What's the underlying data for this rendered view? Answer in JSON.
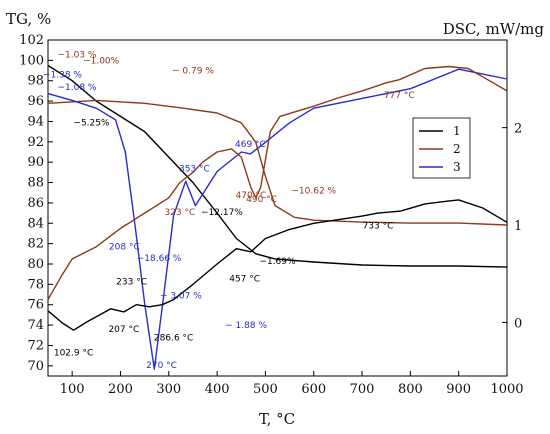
{
  "chart_data": {
    "type": "line",
    "title": "",
    "xlabel": "T, °C",
    "ylabel_left": "TG, %",
    "ylabel_right": "DSC, mW/mg",
    "xlim": [
      50,
      1000
    ],
    "ylim_left": [
      69,
      102
    ],
    "ylim_right": [
      -0.55,
      2.9
    ],
    "x_ticks": [
      100,
      200,
      300,
      400,
      500,
      600,
      700,
      800,
      900,
      1000
    ],
    "y_left_ticks": [
      70,
      72,
      74,
      76,
      78,
      80,
      82,
      84,
      86,
      88,
      90,
      92,
      94,
      96,
      98,
      100,
      102
    ],
    "y_right_ticks": [
      0,
      1,
      2
    ],
    "grid": false,
    "legend_position": "right",
    "series": [
      {
        "name": "1",
        "color": "#000000",
        "axis": "left",
        "points": [
          [
            50,
            99.5
          ],
          [
            100,
            98
          ],
          [
            150,
            96
          ],
          [
            200,
            94.5
          ],
          [
            250,
            93
          ],
          [
            300,
            90.5
          ],
          [
            350,
            88
          ],
          [
            400,
            85
          ],
          [
            440,
            82.5
          ],
          [
            480,
            81
          ],
          [
            520,
            80.5
          ],
          [
            600,
            80.2
          ],
          [
            700,
            79.9
          ],
          [
            800,
            79.8
          ],
          [
            900,
            79.8
          ],
          [
            1000,
            79.7
          ]
        ]
      },
      {
        "name": "2",
        "color": "#8B3A1A",
        "axis": "right",
        "points": [
          [
            50,
            2.25
          ],
          [
            150,
            2.28
          ],
          [
            250,
            2.25
          ],
          [
            330,
            2.2
          ],
          [
            400,
            2.15
          ],
          [
            450,
            2.05
          ],
          [
            480,
            1.85
          ],
          [
            500,
            1.5
          ],
          [
            520,
            1.2
          ],
          [
            560,
            1.08
          ],
          [
            600,
            1.05
          ],
          [
            700,
            1.03
          ],
          [
            800,
            1.02
          ],
          [
            900,
            1.02
          ],
          [
            1000,
            1.0
          ]
        ]
      },
      {
        "name": "3",
        "color": "#2A2AD0",
        "axis": "right",
        "points": [
          [
            50,
            2.35
          ],
          [
            100,
            2.28
          ],
          [
            150,
            2.2
          ],
          [
            190,
            2.08
          ],
          [
            210,
            1.75
          ],
          [
            230,
            1.0
          ],
          [
            250,
            0.2
          ],
          [
            270,
            -0.48
          ],
          [
            290,
            0.3
          ],
          [
            310,
            1.1
          ],
          [
            335,
            1.45
          ],
          [
            355,
            1.2
          ],
          [
            400,
            1.55
          ],
          [
            450,
            1.75
          ],
          [
            469,
            1.73
          ],
          [
            500,
            1.85
          ],
          [
            550,
            2.05
          ],
          [
            600,
            2.2
          ],
          [
            700,
            2.3
          ],
          [
            800,
            2.4
          ],
          [
            850,
            2.5
          ],
          [
            900,
            2.6
          ],
          [
            950,
            2.55
          ],
          [
            1000,
            2.5
          ]
        ]
      },
      {
        "name": "",
        "color": "#000000",
        "axis": "left",
        "points": [
          [
            50,
            75.4
          ],
          [
            80,
            74.2
          ],
          [
            102.9,
            73.5
          ],
          [
            130,
            74.3
          ],
          [
            180,
            75.6
          ],
          [
            207,
            75.3
          ],
          [
            233,
            76.0
          ],
          [
            260,
            75.8
          ],
          [
            286.6,
            76.0
          ],
          [
            310,
            76.5
          ],
          [
            350,
            78.0
          ],
          [
            400,
            80.0
          ],
          [
            440,
            81.5
          ],
          [
            470,
            81.2
          ],
          [
            500,
            82.5
          ],
          [
            550,
            83.4
          ],
          [
            600,
            84
          ],
          [
            700,
            84.7
          ],
          [
            733,
            85
          ],
          [
            780,
            85.2
          ],
          [
            830,
            85.9
          ],
          [
            880,
            86.2
          ],
          [
            900,
            86.3
          ],
          [
            950,
            85.5
          ],
          [
            1000,
            84.1
          ]
        ]
      },
      {
        "name": "",
        "color": "#8B3A1A",
        "axis": "left",
        "points": [
          [
            50,
            76.5
          ],
          [
            80,
            79
          ],
          [
            100,
            80.5
          ],
          [
            150,
            81.7
          ],
          [
            200,
            83.5
          ],
          [
            250,
            85
          ],
          [
            300,
            86.5
          ],
          [
            323,
            88
          ],
          [
            350,
            89
          ],
          [
            370,
            90
          ],
          [
            400,
            91
          ],
          [
            430,
            91.3
          ],
          [
            450,
            90.5
          ],
          [
            470,
            87.5
          ],
          [
            480,
            86.5
          ],
          [
            490,
            87.5
          ],
          [
            510,
            93
          ],
          [
            530,
            94.5
          ],
          [
            600,
            95.5
          ],
          [
            650,
            96.3
          ],
          [
            700,
            97
          ],
          [
            750,
            97.8
          ],
          [
            777,
            98.1
          ],
          [
            830,
            99.2
          ],
          [
            880,
            99.4
          ],
          [
            920,
            99.2
          ],
          [
            960,
            98.1
          ],
          [
            1000,
            97
          ]
        ]
      }
    ],
    "annotations": [
      {
        "text": "−1.03 %",
        "x": 110,
        "y": 100.3,
        "color": "#8B3A1A"
      },
      {
        "text": "−1.00%",
        "x": 160,
        "y": 99.7,
        "color": "#8B3A1A"
      },
      {
        "text": "− 0.79 %",
        "x": 350,
        "y": 98.7,
        "color": "#8B3A1A"
      },
      {
        "text": "−1.38 %",
        "x": 80,
        "y": 98.3,
        "color": "#2A2AD0"
      },
      {
        "text": "−1.08 %",
        "x": 110,
        "y": 97.1,
        "color": "#2A2AD0"
      },
      {
        "text": "−5.25%",
        "x": 140,
        "y": 93.6,
        "color": "#000000"
      },
      {
        "text": "469 °C",
        "x": 469,
        "y": 91.5,
        "color": "#2A2AD0"
      },
      {
        "text": "353 °C",
        "x": 353,
        "y": 89.1,
        "color": "#2A2AD0"
      },
      {
        "text": "470 °C",
        "x": 470,
        "y": 86.5,
        "color": "#8B3A1A"
      },
      {
        "text": "490 °C",
        "x": 492,
        "y": 86.1,
        "color": "#8B3A1A"
      },
      {
        "text": "−10.62 %",
        "x": 600,
        "y": 86.9,
        "color": "#8B3A1A"
      },
      {
        "text": "323 °C",
        "x": 323,
        "y": 84.8,
        "color": "#8B3A1A"
      },
      {
        "text": "−12.17%",
        "x": 410,
        "y": 84.8,
        "color": "#000000"
      },
      {
        "text": "777 °C",
        "x": 777,
        "y": 96.3,
        "color": "#8B3A1A"
      },
      {
        "text": "733 °C",
        "x": 733,
        "y": 83.5,
        "color": "#000000"
      },
      {
        "text": "208 °C",
        "x": 208,
        "y": 81.4,
        "color": "#2A2AD0"
      },
      {
        "text": "−18.66 %",
        "x": 280,
        "y": 80.3,
        "color": "#2A2AD0"
      },
      {
        "text": "−1.69%",
        "x": 525,
        "y": 80.0,
        "color": "#000000"
      },
      {
        "text": "457 °C",
        "x": 457,
        "y": 78.3,
        "color": "#000000"
      },
      {
        "text": "233 °C",
        "x": 223,
        "y": 78.0,
        "color": "#000000"
      },
      {
        "text": "− 3.07 %",
        "x": 325,
        "y": 76.6,
        "color": "#2A2AD0"
      },
      {
        "text": "207 °C",
        "x": 207,
        "y": 73.3,
        "color": "#000000"
      },
      {
        "text": "286.6 °C",
        "x": 310,
        "y": 72.5,
        "color": "#000000"
      },
      {
        "text": "− 1.88 %",
        "x": 460,
        "y": 73.7,
        "color": "#2A2AD0"
      },
      {
        "text": "102.9 °C",
        "x": 102.9,
        "y": 71.0,
        "color": "#000000"
      },
      {
        "text": "270 °C",
        "x": 285,
        "y": 69.8,
        "color": "#2A2AD0"
      }
    ]
  }
}
